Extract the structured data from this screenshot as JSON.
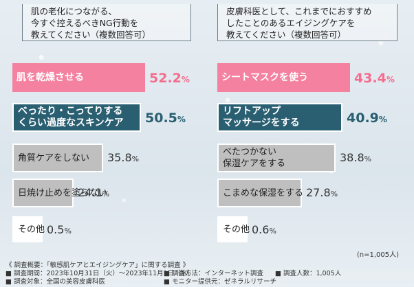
{
  "chart_data": [
    {
      "type": "bar",
      "orientation": "horizontal",
      "title_lines": [
        "肌の老化につながる、",
        "今すぐ控えるべきNG行動を",
        "教えてください（複数回答可）"
      ],
      "categories": [
        "肌を乾燥させる",
        "べったり・こってりするくらい過度なスキンケア",
        "角質ケアをしない",
        "日焼け止めを塗らない",
        "その他"
      ],
      "label_lines": [
        [
          "肌を乾燥させる"
        ],
        [
          "べったり・こってりする",
          "くらい過度なスキンケア"
        ],
        [
          "角質ケアをしない"
        ],
        [
          "日焼け止めを塗らない"
        ],
        [
          "その他"
        ]
      ],
      "values": [
        52.2,
        50.5,
        35.8,
        24.1,
        0.5
      ],
      "value_labels": [
        {
          "num": "52.2",
          "unit": "%"
        },
        {
          "num": "50.5",
          "unit": "%"
        },
        {
          "num": "35.8",
          "unit": "%"
        },
        {
          "num": "24.1",
          "unit": "%"
        },
        {
          "num": "0.5",
          "unit": "%"
        }
      ],
      "styles": [
        "pink",
        "teal",
        "gray",
        "gray",
        "gray"
      ],
      "xlim": [
        0,
        60
      ]
    },
    {
      "type": "bar",
      "orientation": "horizontal",
      "title_lines": [
        "皮膚科医として、これまでにおすすめ",
        "したことのあるエイジングケアを",
        "教えてください（複数回答可）"
      ],
      "categories": [
        "シートマスクを使う",
        "リフトアップマッサージをする",
        "べたつかない保湿ケアをする",
        "こまめな保湿をする",
        "その他"
      ],
      "label_lines": [
        [
          "シートマスクを使う"
        ],
        [
          "リフトアップ",
          "マッサージをする"
        ],
        [
          "べたつかない",
          "保湿ケアをする"
        ],
        [
          "こまめな保湿をする"
        ],
        [
          "その他"
        ]
      ],
      "values": [
        43.4,
        40.9,
        38.8,
        27.8,
        0.6
      ],
      "value_labels": [
        {
          "num": "43.4",
          "unit": "%"
        },
        {
          "num": "40.9",
          "unit": "%"
        },
        {
          "num": "38.8",
          "unit": "%"
        },
        {
          "num": "27.8",
          "unit": "%"
        },
        {
          "num": "0.6",
          "unit": "%"
        }
      ],
      "styles": [
        "pink",
        "teal",
        "gray",
        "gray",
        "gray"
      ],
      "xlim": [
        0,
        50
      ]
    }
  ],
  "sample_size": "(n=1,005人)",
  "footer": {
    "overview": "《 調査概要：「敏感肌ケアとエイジングケア」に関する調査 》",
    "period": "■ 調査期間：2023年10月31日（火）～2023年11月1日（水）",
    "method": "■ 調査方法：インターネット調査",
    "count": "■ 調査人数：1,005人",
    "target": "■ 調査対象：全国の美容皮膚科医",
    "monitor": "■ モニター提供元：ゼネラルリサーチ"
  }
}
